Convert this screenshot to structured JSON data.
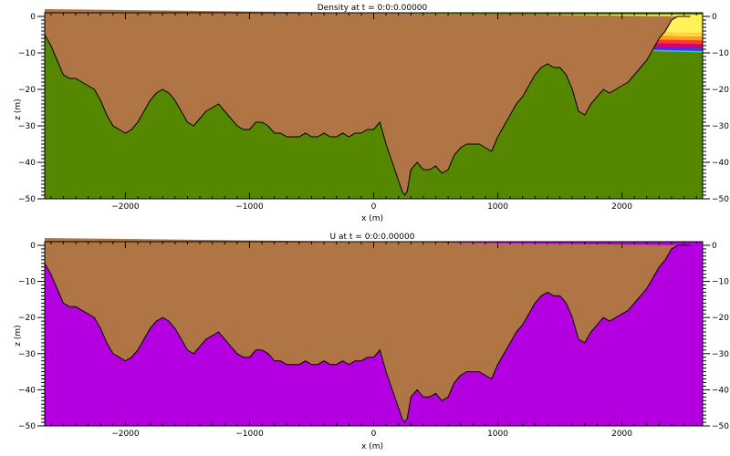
{
  "chart_data": [
    {
      "type": "area",
      "title": "Density at t = 0:0:0.00000",
      "xlabel": "x (m)",
      "ylabel": "z (m)",
      "xlim": [
        -2650,
        2650
      ],
      "ylim": [
        -50,
        1
      ],
      "x_ticks": [
        -2000,
        -1000,
        0,
        1000,
        2000
      ],
      "x_tick_labels": [
        "−2000",
        "−1000",
        "0",
        "1000",
        "2000"
      ],
      "y_ticks": [
        0,
        -10,
        -20,
        -30,
        -40,
        -50
      ],
      "y_tick_labels": [
        "0",
        "−10",
        "−20",
        "−30",
        "−40",
        "−50"
      ],
      "grid": false,
      "fill_color": "#558800",
      "ground_color": "#b07545",
      "density_bands": [
        {
          "color": "#fff158",
          "top": [
            0.5,
            0.5
          ],
          "bottom": [
            -1.8,
            -4.6
          ]
        },
        {
          "color": "#ffd838",
          "top": [
            -1.8,
            -4.6
          ],
          "bottom": [
            -2.6,
            -5.6
          ]
        },
        {
          "color": "#ff9e24",
          "top": [
            -2.6,
            -5.6
          ],
          "bottom": [
            -3.2,
            -6.6
          ]
        },
        {
          "color": "#ff3a28",
          "top": [
            -3.2,
            -6.6
          ],
          "bottom": [
            -3.8,
            -7.6
          ]
        },
        {
          "color": "#d5006e",
          "top": [
            -3.8,
            -7.6
          ],
          "bottom": [
            -4.4,
            -8.6
          ]
        },
        {
          "color": "#5b28d8",
          "top": [
            -4.4,
            -8.6
          ],
          "bottom": [
            -4.9,
            -9.5
          ]
        },
        {
          "color": "#28c8c8",
          "top": [
            -4.9,
            -9.5
          ],
          "bottom": [
            -5.1,
            -9.9
          ]
        }
      ],
      "bathymetry": {
        "x": [
          -2650,
          -2600,
          -2550,
          -2500,
          -2450,
          -2400,
          -2350,
          -2300,
          -2250,
          -2200,
          -2150,
          -2100,
          -2050,
          -2000,
          -1950,
          -1900,
          -1850,
          -1800,
          -1750,
          -1700,
          -1650,
          -1600,
          -1550,
          -1500,
          -1450,
          -1400,
          -1350,
          -1300,
          -1250,
          -1200,
          -1150,
          -1100,
          -1050,
          -1000,
          -950,
          -900,
          -850,
          -800,
          -750,
          -700,
          -650,
          -600,
          -550,
          -500,
          -450,
          -400,
          -350,
          -300,
          -250,
          -200,
          -150,
          -100,
          -50,
          0,
          50,
          100,
          150,
          200,
          230,
          250,
          270,
          300,
          350,
          400,
          450,
          500,
          550,
          600,
          650,
          700,
          750,
          800,
          850,
          900,
          950,
          1000,
          1050,
          1100,
          1150,
          1200,
          1250,
          1300,
          1350,
          1400,
          1450,
          1500,
          1550,
          1600,
          1650,
          1700,
          1750,
          1800,
          1850,
          1900,
          1950,
          2000,
          2050,
          2100,
          2150,
          2200,
          2250,
          2300,
          2350,
          2400,
          2450,
          2500,
          2550,
          2600,
          2650
        ],
        "z": [
          -5,
          -8,
          -12,
          -16,
          -17,
          -17,
          -18,
          -19,
          -20,
          -23,
          -27,
          -30,
          -31,
          -32,
          -31,
          -29,
          -26,
          -23,
          -21,
          -20,
          -21,
          -23,
          -26,
          -29,
          -30,
          -28,
          -26,
          -25,
          -24,
          -26,
          -28,
          -30,
          -31,
          -31,
          -29,
          -29,
          -30,
          -32,
          -32,
          -33,
          -33,
          -33,
          -32,
          -33,
          -33,
          -32,
          -33,
          -33,
          -32,
          -33,
          -32,
          -32,
          -31,
          -31,
          -29,
          -35,
          -40,
          -45,
          -48,
          -49,
          -48,
          -42,
          -40,
          -42,
          -42,
          -41,
          -43,
          -42,
          -38,
          -36,
          -35,
          -35,
          -35,
          -36,
          -37,
          -33,
          -30,
          -27,
          -24,
          -22,
          -19,
          -16,
          -14,
          -13,
          -14,
          -14,
          -16,
          -20,
          -26,
          -27,
          -24,
          -22,
          -20,
          -21,
          -20,
          -19,
          -18,
          -16,
          -14,
          -12,
          -9,
          -6,
          -4,
          -1,
          0,
          0,
          0
        ]
      }
    },
    {
      "type": "area",
      "title": "U at t = 0:0:0.00000",
      "xlabel": "x (m)",
      "ylabel": "z (m)",
      "xlim": [
        -2650,
        2650
      ],
      "ylim": [
        -50,
        1
      ],
      "x_ticks": [
        -2000,
        -1000,
        0,
        1000,
        2000
      ],
      "x_tick_labels": [
        "−2000",
        "−1000",
        "0",
        "1000",
        "2000"
      ],
      "y_ticks": [
        0,
        -10,
        -20,
        -30,
        -40,
        -50
      ],
      "y_tick_labels": [
        "0",
        "−10",
        "−20",
        "−30",
        "−40",
        "−50"
      ],
      "grid": false,
      "fill_color": "#b400e0",
      "ground_color": "#b07545"
    }
  ]
}
